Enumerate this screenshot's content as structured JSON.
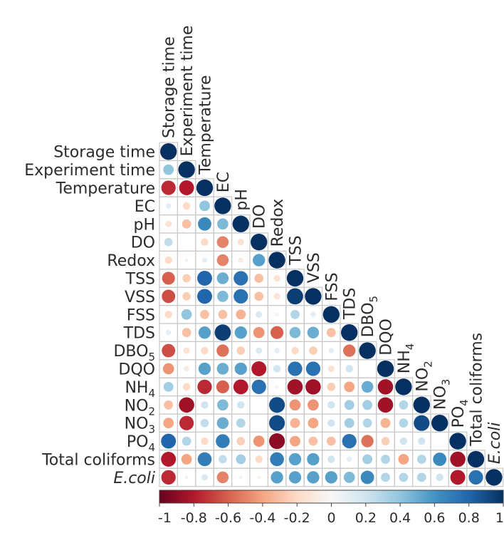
{
  "chart_data": {
    "type": "heatmap",
    "variables": [
      {
        "name": "Storage time",
        "base": "Storage time",
        "sub": "",
        "italic": false
      },
      {
        "name": "Experiment time",
        "base": "Experiment time",
        "sub": "",
        "italic": false
      },
      {
        "name": "Temperature",
        "base": "Temperature",
        "sub": "",
        "italic": false
      },
      {
        "name": "EC",
        "base": "EC",
        "sub": "",
        "italic": false
      },
      {
        "name": "pH",
        "base": "pH",
        "sub": "",
        "italic": false
      },
      {
        "name": "DO",
        "base": "DO",
        "sub": "",
        "italic": false
      },
      {
        "name": "Redox",
        "base": "Redox",
        "sub": "",
        "italic": false
      },
      {
        "name": "TSS",
        "base": "TSS",
        "sub": "",
        "italic": false
      },
      {
        "name": "VSS",
        "base": "VSS",
        "sub": "",
        "italic": false
      },
      {
        "name": "FSS",
        "base": "FSS",
        "sub": "",
        "italic": false
      },
      {
        "name": "TDS",
        "base": "TDS",
        "sub": "",
        "italic": false
      },
      {
        "name": "DBO5",
        "base": "DBO",
        "sub": "5",
        "italic": false
      },
      {
        "name": "DQO",
        "base": "DQO",
        "sub": "",
        "italic": false
      },
      {
        "name": "NH4",
        "base": "NH",
        "sub": "4",
        "italic": false
      },
      {
        "name": "NO2",
        "base": "NO",
        "sub": "2",
        "italic": false
      },
      {
        "name": "NO3",
        "base": "NO",
        "sub": "3",
        "italic": false
      },
      {
        "name": "PO4",
        "base": "PO",
        "sub": "4",
        "italic": false
      },
      {
        "name": "Total coliforms",
        "base": "Total coliforms",
        "sub": "",
        "italic": false
      },
      {
        "name": "E.coli",
        "base": "E.coli",
        "sub": "",
        "italic": true
      }
    ],
    "correlations": [
      [
        1
      ],
      [
        0.4,
        1
      ],
      [
        -0.75,
        -0.8,
        1
      ],
      [
        0.1,
        -0.2,
        0.4,
        1
      ],
      [
        -0.15,
        -0.3,
        0.65,
        0.45,
        1
      ],
      [
        0.25,
        0.0,
        -0.2,
        -0.5,
        -0.15,
        1
      ],
      [
        -0.2,
        0.05,
        0.1,
        -0.5,
        -0.1,
        0.55,
        1
      ],
      [
        -0.6,
        -0.25,
        0.8,
        0.5,
        0.75,
        -0.3,
        -0.15,
        1
      ],
      [
        -0.65,
        -0.25,
        0.8,
        0.45,
        0.75,
        -0.3,
        -0.15,
        0.95,
        1
      ],
      [
        -0.2,
        0.4,
        -0.3,
        -0.3,
        -0.35,
        0.15,
        0.05,
        0.3,
        0.1,
        1
      ],
      [
        0.1,
        -0.3,
        0.55,
        0.95,
        0.55,
        -0.45,
        -0.6,
        0.45,
        0.5,
        -0.3,
        1
      ],
      [
        -0.65,
        -0.15,
        -0.2,
        -0.55,
        -0.25,
        0.15,
        0.1,
        -0.2,
        -0.25,
        0.1,
        -0.55,
        1
      ],
      [
        -0.45,
        -0.1,
        0.55,
        0.5,
        0.55,
        -0.8,
        0.2,
        0.75,
        0.75,
        -0.15,
        0.2,
        0.0,
        1
      ],
      [
        0.35,
        -0.2,
        -0.75,
        -0.6,
        -0.8,
        0.75,
        -0.05,
        -0.85,
        -0.85,
        -0.25,
        -0.4,
        0.5,
        -0.85,
        1
      ],
      [
        -0.3,
        -0.85,
        0.2,
        0.45,
        0.2,
        0.0,
        0.9,
        -0.45,
        -0.45,
        0.2,
        0.35,
        0.35,
        -0.85,
        0.3,
        1
      ],
      [
        -0.4,
        -0.75,
        0.25,
        0.5,
        0.3,
        0.0,
        0.9,
        -0.35,
        -0.4,
        0.2,
        0.35,
        0.3,
        -0.35,
        0.3,
        0.9,
        1
      ],
      [
        0.8,
        0.3,
        -0.2,
        0.7,
        -0.25,
        -0.45,
        -0.9,
        -0.4,
        -0.3,
        -0.3,
        0.75,
        -0.55,
        -0.25,
        0.2,
        0.2,
        0.0,
        1
      ],
      [
        -0.8,
        -0.4,
        0.7,
        0.25,
        0.35,
        -0.2,
        0.7,
        0.55,
        0.55,
        0.2,
        0.1,
        0.35,
        0.3,
        -0.4,
        0.3,
        0.65,
        -0.85,
        1
      ],
      [
        -0.75,
        0.05,
        0.15,
        -0.5,
        0.05,
        -0.05,
        0.55,
        0.55,
        0.55,
        0.55,
        0.45,
        0.65,
        0.3,
        0.3,
        0.3,
        0.2,
        -0.8,
        0.75,
        1
      ]
    ],
    "colorbar": {
      "min": -1,
      "max": 1,
      "ticks": [
        "-1",
        "-0.8",
        "-0.6",
        "-0.4",
        "-0.2",
        "0",
        "0.2",
        "0.4",
        "0.6",
        "0.8",
        "1"
      ],
      "colors": [
        "#67001f",
        "#b2182b",
        "#d6604d",
        "#f4a582",
        "#fddbc7",
        "#f7f7f7",
        "#d1e5f0",
        "#92c5de",
        "#4393c3",
        "#2166ac",
        "#053061"
      ]
    },
    "layout": "lower-triangle",
    "grid": true
  }
}
